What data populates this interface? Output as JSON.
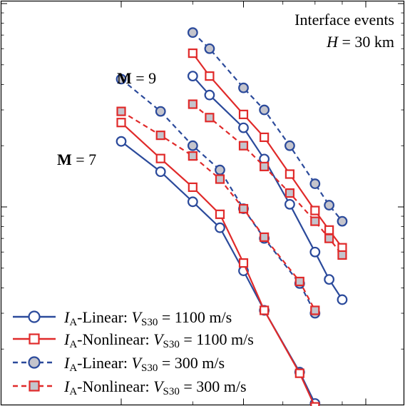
{
  "chart_data": {
    "type": "line",
    "annotation_title": "Interface events",
    "annotation_h_var": "H",
    "annotation_h_rest": " = 30 km",
    "magnitude_labels": [
      {
        "bold": "M",
        "rest": " = 9",
        "magnitude": 9
      },
      {
        "bold": "M",
        "rest": " = 7",
        "magnitude": 7
      }
    ],
    "x_scale": "log",
    "y_scale": "log",
    "xlim": [
      20,
      80
    ],
    "ylim": [
      0.1,
      10
    ],
    "grid": false,
    "legend_position": "bottom-left",
    "series": [
      {
        "name": "IA-Linear: VS30 = 1100 m/s",
        "legend": {
          "var": "I",
          "sub": "A",
          "mid": "-Linear: ",
          "var2": "V",
          "sub2": "S30",
          "tail": " = 1100 m/s"
        },
        "color": "#2b4a9b",
        "marker": "circle",
        "filled": false,
        "dashed": false,
        "groups": [
          {
            "magnitude": 9,
            "points": [
              [
                30,
                4.4
              ],
              [
                33,
                3.55
              ],
              [
                40,
                2.45
              ],
              [
                45,
                1.72
              ],
              [
                52,
                1.03
              ],
              [
                60,
                0.6
              ],
              [
                65,
                0.44
              ],
              [
                70,
                0.35
              ]
            ]
          },
          {
            "magnitude": 7,
            "points": [
              [
                20,
                2.1
              ],
              [
                25,
                1.49
              ],
              [
                30,
                1.06
              ],
              [
                35,
                0.79
              ],
              [
                40,
                0.485
              ],
              [
                45,
                0.31
              ],
              [
                55,
                0.154
              ],
              [
                60,
                0.108
              ]
            ]
          }
        ]
      },
      {
        "name": "IA-Nonlinear: VS30 = 1100 m/s",
        "legend": {
          "var": "I",
          "sub": "A",
          "mid": "-Nonlinear: ",
          "var2": "V",
          "sub2": "S30",
          "tail": " = 1100 m/s"
        },
        "color": "#e02a2a",
        "marker": "square",
        "filled": false,
        "dashed": false,
        "groups": [
          {
            "magnitude": 9,
            "points": [
              [
                30,
                5.7
              ],
              [
                33,
                4.4
              ],
              [
                40,
                2.85
              ],
              [
                45,
                2.2
              ],
              [
                52,
                1.45
              ],
              [
                60,
                0.96
              ],
              [
                65,
                0.77
              ],
              [
                70,
                0.63
              ]
            ]
          },
          {
            "magnitude": 7,
            "points": [
              [
                20,
                2.6
              ],
              [
                25,
                1.73
              ],
              [
                30,
                1.25
              ],
              [
                35,
                0.92
              ],
              [
                40,
                0.53
              ],
              [
                45,
                0.31
              ],
              [
                55,
                0.152
              ],
              [
                60,
                0.104
              ]
            ]
          }
        ]
      },
      {
        "name": "IA-Linear: VS30 = 300 m/s",
        "legend": {
          "var": "I",
          "sub": "A",
          "mid": "-Linear: ",
          "var2": "V",
          "sub2": "S30",
          "tail": " = 300 m/s"
        },
        "color": "#2b4a9b",
        "marker": "circle",
        "filled": true,
        "dashed": true,
        "groups": [
          {
            "magnitude": 9,
            "points": [
              [
                30,
                7.2
              ],
              [
                33,
                6.0
              ],
              [
                40,
                3.85
              ],
              [
                45,
                3.0
              ],
              [
                52,
                2.0
              ],
              [
                60,
                1.3
              ],
              [
                65,
                1.02
              ],
              [
                70,
                0.85
              ]
            ]
          },
          {
            "magnitude": 7,
            "points": [
              [
                20,
                4.25
              ],
              [
                25,
                2.95
              ],
              [
                30,
                2.0
              ],
              [
                35,
                1.52
              ],
              [
                40,
                0.98
              ],
              [
                45,
                0.7
              ],
              [
                55,
                0.42
              ],
              [
                60,
                0.3
              ]
            ]
          }
        ]
      },
      {
        "name": "IA-Nonlinear: VS30 = 300 m/s",
        "legend": {
          "var": "I",
          "sub": "A",
          "mid": "-Nonlinear: ",
          "var2": "V",
          "sub2": "S30",
          "tail": " = 300 m/s"
        },
        "color": "#e02a2a",
        "marker": "square",
        "filled": true,
        "dashed": true,
        "groups": [
          {
            "magnitude": 9,
            "points": [
              [
                30,
                3.2
              ],
              [
                33,
                2.75
              ],
              [
                40,
                2.0
              ],
              [
                45,
                1.58
              ],
              [
                52,
                1.17
              ],
              [
                60,
                0.85
              ],
              [
                65,
                0.7
              ],
              [
                70,
                0.58
              ]
            ]
          },
          {
            "magnitude": 7,
            "points": [
              [
                20,
                2.95
              ],
              [
                25,
                2.25
              ],
              [
                30,
                1.78
              ],
              [
                35,
                1.37
              ],
              [
                40,
                0.98
              ],
              [
                45,
                0.71
              ],
              [
                55,
                0.43
              ],
              [
                60,
                0.31
              ]
            ]
          }
        ]
      }
    ]
  },
  "style": {
    "blue": "#2b4a9b",
    "red": "#e02a2a",
    "marker_fill": "#c4c4cc",
    "background": "#ffffff",
    "frame": "#000000"
  }
}
